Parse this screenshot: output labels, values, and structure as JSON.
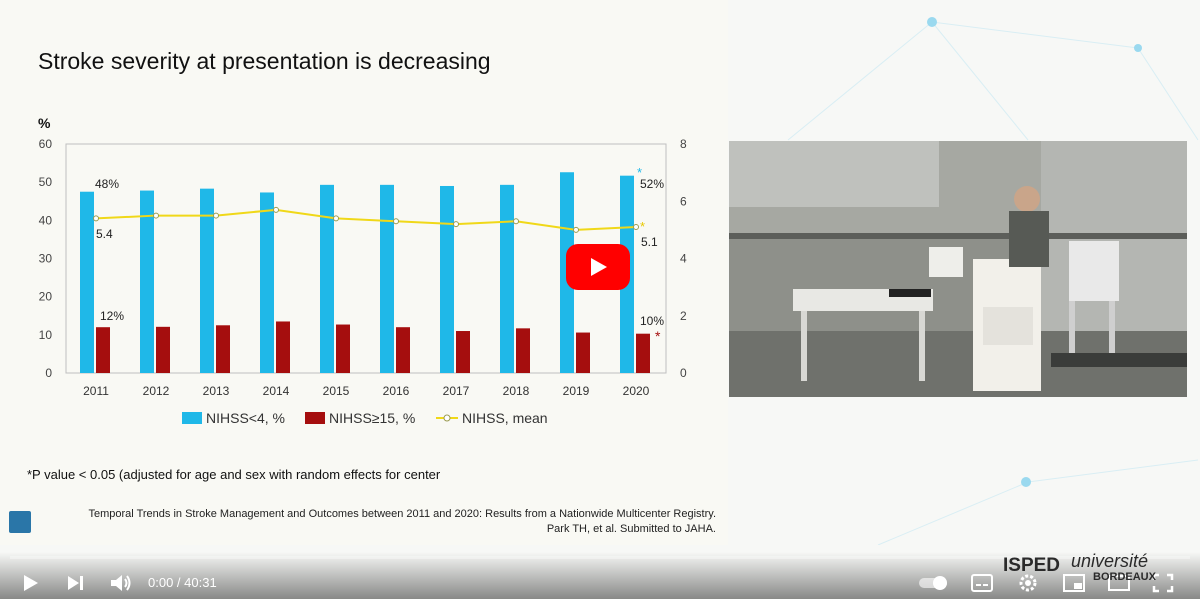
{
  "slide": {
    "title": "Stroke severity at presentation is decreasing",
    "footnote": "*P value < 0.05 (adjusted for age and sex with random effects for center",
    "reference_line1": "Temporal Trends in Stroke Management and Outcomes between 2011 and 2020: Results from a Nationwide Multicenter Registry.",
    "reference_line2": "Park TH, et al. Submitted to JAHA."
  },
  "chart_data": {
    "type": "bar",
    "categories": [
      "2011",
      "2012",
      "2013",
      "2014",
      "2015",
      "2016",
      "2017",
      "2018",
      "2019",
      "2020"
    ],
    "ylabel": "%",
    "ylim": [
      0,
      60
    ],
    "yticks": [
      "0",
      "10",
      "20",
      "30",
      "40",
      "50",
      "60"
    ],
    "y2lim": [
      0,
      8
    ],
    "y2ticks": [
      "0",
      "2",
      "4",
      "6",
      "8"
    ],
    "series": [
      {
        "name": "NIHSS<4, %",
        "type": "bar",
        "axis": "left",
        "color": "#1fb8e8",
        "values": [
          47.5,
          47.8,
          48.3,
          47.3,
          49.3,
          49.3,
          49.0,
          49.3,
          52.6,
          51.7
        ]
      },
      {
        "name": "NIHSS≥15, %",
        "type": "bar",
        "axis": "left",
        "color": "#a50e0e",
        "values": [
          12.0,
          12.1,
          12.5,
          13.5,
          12.7,
          12.0,
          11.0,
          11.7,
          10.6,
          10.3
        ]
      },
      {
        "name": "NIHSS, mean",
        "type": "line",
        "axis": "right",
        "color": "#f0d818",
        "values": [
          5.4,
          5.5,
          5.5,
          5.7,
          5.4,
          5.3,
          5.2,
          5.3,
          5.0,
          5.1
        ]
      }
    ],
    "annotations": {
      "nihss4_first": "48%",
      "nihss4_last": "52%",
      "nihss15_first": "12%",
      "nihss15_last": "10%",
      "mean_first": "5.4",
      "mean_last": "5.1",
      "star": "*"
    },
    "grid": false,
    "legend_position": "bottom"
  },
  "player": {
    "time_current": "0:00",
    "time_separator": " / ",
    "time_total": "40:31",
    "progress": 0,
    "icons": [
      "play-icon",
      "next-icon",
      "volume-icon",
      "autoplay-toggle-icon",
      "subtitles-icon",
      "settings-icon",
      "miniplayer-icon",
      "theater-mode-icon",
      "fullscreen-icon",
      "youtube-play-icon"
    ],
    "accent": "#ff0000"
  },
  "watermark": {
    "isped": "ISPED",
    "universite": "université",
    "bordeaux": "BORDEAUX"
  }
}
